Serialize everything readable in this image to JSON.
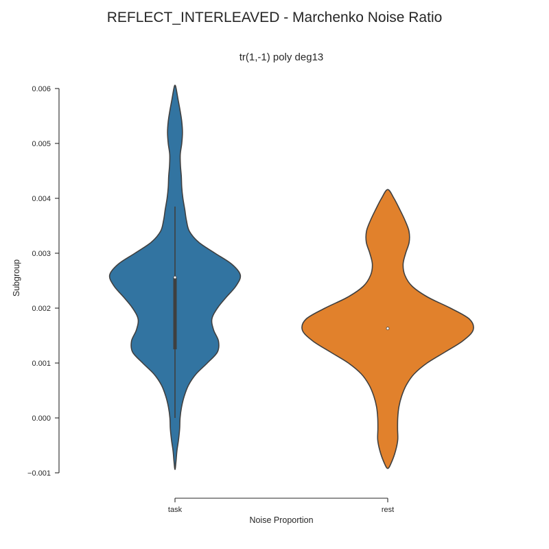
{
  "chart_data": {
    "type": "violin",
    "suptitle": "REFLECT_INTERLEAVED - Marchenko Noise Ratio",
    "title": "tr(1,-1) poly deg13",
    "xlabel": "Noise Proportion",
    "ylabel": "Subgroup",
    "categories": [
      "task",
      "rest"
    ],
    "ylim": [
      -0.001,
      0.006
    ],
    "yticks": [
      -0.001,
      0.0,
      0.001,
      0.002,
      0.003,
      0.004,
      0.005,
      0.006
    ],
    "ytick_labels": [
      "−0.001",
      "0.000",
      "0.001",
      "0.002",
      "0.003",
      "0.004",
      "0.005",
      "0.006"
    ],
    "colors": {
      "task": "#3274a1",
      "rest": "#e1812c",
      "edge": "#3f3f3f"
    },
    "violins": [
      {
        "category": "task",
        "color": "#3274a1",
        "y_range": [
          -0.00094,
          0.00606
        ],
        "median": 0.00256,
        "q1": 0.00125,
        "q3": 0.00256,
        "whisker_low": 0.0,
        "whisker_high": 0.00385,
        "density_profile": [
          [
            -0.00094,
            0.0
          ],
          [
            -0.0008,
            0.011
          ],
          [
            -0.0006,
            0.022
          ],
          [
            -0.0004,
            0.04
          ],
          [
            -0.0002,
            0.053
          ],
          [
            0.0,
            0.058
          ],
          [
            0.0002,
            0.075
          ],
          [
            0.0004,
            0.106
          ],
          [
            0.0006,
            0.155
          ],
          [
            0.0008,
            0.24
          ],
          [
            0.001,
            0.368
          ],
          [
            0.0012,
            0.483
          ],
          [
            0.0014,
            0.495
          ],
          [
            0.0016,
            0.44
          ],
          [
            0.0018,
            0.42
          ],
          [
            0.002,
            0.483
          ],
          [
            0.0022,
            0.584
          ],
          [
            0.0024,
            0.693
          ],
          [
            0.0026,
            0.744
          ],
          [
            0.0028,
            0.647
          ],
          [
            0.003,
            0.456
          ],
          [
            0.0032,
            0.27
          ],
          [
            0.0034,
            0.164
          ],
          [
            0.0036,
            0.13
          ],
          [
            0.0038,
            0.111
          ],
          [
            0.004,
            0.09
          ],
          [
            0.0042,
            0.077
          ],
          [
            0.0044,
            0.072
          ],
          [
            0.0046,
            0.062
          ],
          [
            0.0048,
            0.06
          ],
          [
            0.005,
            0.077
          ],
          [
            0.0052,
            0.085
          ],
          [
            0.0054,
            0.077
          ],
          [
            0.0056,
            0.058
          ],
          [
            0.0058,
            0.035
          ],
          [
            0.006,
            0.013
          ],
          [
            0.00606,
            0.0
          ]
        ]
      },
      {
        "category": "rest",
        "color": "#e1812c",
        "y_range": [
          -0.00092,
          0.00416
        ],
        "median": 0.00163,
        "q1": 0.00163,
        "q3": 0.00163,
        "whisker_low": 0.00163,
        "whisker_high": 0.00163,
        "density_profile": [
          [
            -0.00092,
            0.0
          ],
          [
            -0.0008,
            0.045
          ],
          [
            -0.0006,
            0.089
          ],
          [
            -0.0004,
            0.114
          ],
          [
            -0.0002,
            0.112
          ],
          [
            0.0,
            0.114
          ],
          [
            0.0002,
            0.127
          ],
          [
            0.0004,
            0.159
          ],
          [
            0.0006,
            0.212
          ],
          [
            0.0008,
            0.3
          ],
          [
            0.001,
            0.448
          ],
          [
            0.0012,
            0.652
          ],
          [
            0.0014,
            0.852
          ],
          [
            0.0016,
            0.972
          ],
          [
            0.0018,
            0.93
          ],
          [
            0.002,
            0.714
          ],
          [
            0.0022,
            0.456
          ],
          [
            0.0024,
            0.277
          ],
          [
            0.0026,
            0.195
          ],
          [
            0.0028,
            0.175
          ],
          [
            0.003,
            0.204
          ],
          [
            0.0032,
            0.244
          ],
          [
            0.0034,
            0.242
          ],
          [
            0.0036,
            0.196
          ],
          [
            0.0038,
            0.136
          ],
          [
            0.004,
            0.071
          ],
          [
            0.00416,
            0.0
          ]
        ]
      }
    ]
  }
}
